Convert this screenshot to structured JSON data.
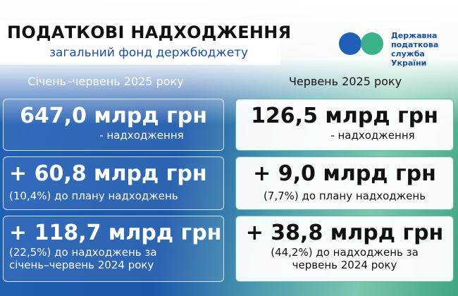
{
  "header": {
    "title": "ПОДАТКОВІ НАДХОДЖЕННЯ",
    "subtitle": "загальний фонд держбюджету"
  },
  "logo": {
    "lines": [
      "Державна",
      "податкова",
      "служба України"
    ]
  },
  "columns": [
    {
      "heading": "Січень–червень 2025 року",
      "cards": [
        {
          "value": "647,0 млрд грн",
          "caption": [
            "- надходження"
          ]
        },
        {
          "value": "+ 60,8 млрд грн",
          "caption": [
            "(10,4%) до плану надходжень"
          ]
        },
        {
          "value": "+ 118,7 млрд грн",
          "caption": [
            "(22,5%) до надходжень за",
            "січень–червень 2024 року"
          ]
        }
      ]
    },
    {
      "heading": "Червень 2025 року",
      "cards": [
        {
          "value": "126,5 млрд грн",
          "caption": [
            "- надходження"
          ]
        },
        {
          "value": "+ 9,0 млрд грн",
          "caption": [
            "(7,7%) до плану надходжень"
          ]
        },
        {
          "value": "+ 38,8 млрд грн",
          "caption": [
            "(44,2%) до надходжень за",
            "червень 2024 року"
          ]
        }
      ]
    }
  ]
}
